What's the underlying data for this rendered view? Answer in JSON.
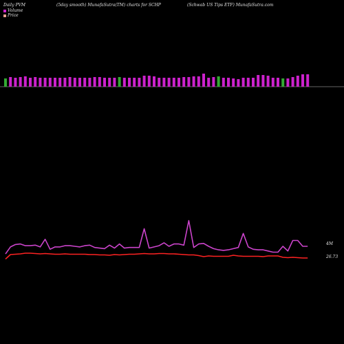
{
  "header": {
    "left": "Daily PVM",
    "middle": "(5day smooth) MunafaSutra(TM) charts for SCHP",
    "right": "(Schwab US Tips ETF) MunafaSutra.com"
  },
  "legend": {
    "volume_label": "Volume",
    "price_label": "Price"
  },
  "colors": {
    "background": "#000000",
    "volume_up": "#cc22cc",
    "volume_down": "#33aa33",
    "volume_line": "#cc44cc",
    "price_line": "#ff2222",
    "baseline": "#cccccc",
    "volume_swatch": "#cc22cc",
    "price_swatch": "#e8a090"
  },
  "chart_data": {
    "type": "bar",
    "title": "(5day smooth) MunafaSutra(TM) charts for SCHP",
    "series": [
      {
        "name": "Volume",
        "values": [
          1.2,
          1.4,
          1.3,
          1.4,
          1.5,
          1.3,
          1.4,
          1.3,
          1.3,
          1.3,
          1.3,
          1.3,
          1.3,
          1.4,
          1.3,
          1.3,
          1.3,
          1.3,
          1.4,
          1.4,
          1.3,
          1.3,
          1.3,
          1.4,
          1.3,
          1.3,
          1.3,
          1.3,
          1.6,
          1.6,
          1.5,
          1.3,
          1.3,
          1.3,
          1.3,
          1.3,
          1.4,
          1.4,
          1.5,
          1.5,
          1.9,
          1.3,
          1.4,
          1.5,
          1.3,
          1.3,
          1.2,
          1.1,
          1.3,
          1.3,
          1.3,
          1.7,
          1.7,
          1.6,
          1.3,
          1.3,
          1.2,
          1.2,
          1.4,
          1.6,
          1.8,
          1.8
        ],
        "up": [
          false,
          true,
          true,
          true,
          true,
          true,
          true,
          true,
          true,
          true,
          true,
          true,
          true,
          true,
          true,
          true,
          true,
          true,
          true,
          true,
          true,
          true,
          true,
          false,
          true,
          true,
          true,
          true,
          true,
          true,
          true,
          true,
          true,
          true,
          true,
          true,
          true,
          true,
          true,
          true,
          true,
          true,
          true,
          false,
          true,
          true,
          true,
          true,
          true,
          true,
          true,
          true,
          true,
          true,
          true,
          true,
          false,
          true,
          true,
          true,
          true,
          true
        ]
      },
      {
        "name": "Volume",
        "values": [
          0.35,
          0.95,
          1.15,
          1.2,
          1.05,
          1.05,
          1.1,
          0.95,
          1.6,
          0.75,
          0.95,
          0.95,
          1.05,
          1.05,
          1.0,
          0.95,
          1.05,
          1.1,
          0.9,
          0.85,
          0.8,
          1.1,
          0.85,
          1.2,
          0.85,
          0.9,
          0.9,
          0.9,
          2.5,
          0.85,
          0.95,
          1.05,
          1.3,
          1.0,
          1.2,
          1.2,
          1.1,
          3.2,
          0.9,
          1.2,
          1.25,
          1.0,
          0.8,
          0.7,
          0.65,
          0.7,
          0.8,
          0.9,
          2.1,
          0.95,
          0.75,
          0.7,
          0.7,
          0.6,
          0.5,
          0.5,
          1.0,
          0.6,
          1.5,
          1.5,
          1.0,
          1.0
        ]
      },
      {
        "name": "Price",
        "values": [
          26.65,
          26.78,
          26.79,
          26.8,
          26.82,
          26.82,
          26.81,
          26.8,
          26.81,
          26.8,
          26.79,
          26.79,
          26.8,
          26.79,
          26.79,
          26.79,
          26.79,
          26.78,
          26.78,
          26.77,
          26.77,
          26.76,
          26.78,
          26.77,
          26.78,
          26.79,
          26.79,
          26.8,
          26.81,
          26.8,
          26.8,
          26.81,
          26.81,
          26.8,
          26.8,
          26.79,
          26.78,
          26.77,
          26.77,
          26.75,
          26.72,
          26.74,
          26.73,
          26.73,
          26.73,
          26.73,
          26.76,
          26.74,
          26.73,
          26.73,
          26.73,
          26.73,
          26.72,
          26.74,
          26.74,
          26.74,
          26.7,
          26.69,
          26.7,
          26.69,
          26.68,
          26.68
        ]
      }
    ],
    "annotations": [
      "4M",
      "26.73"
    ],
    "grid": false,
    "legend_position": "top-left"
  }
}
